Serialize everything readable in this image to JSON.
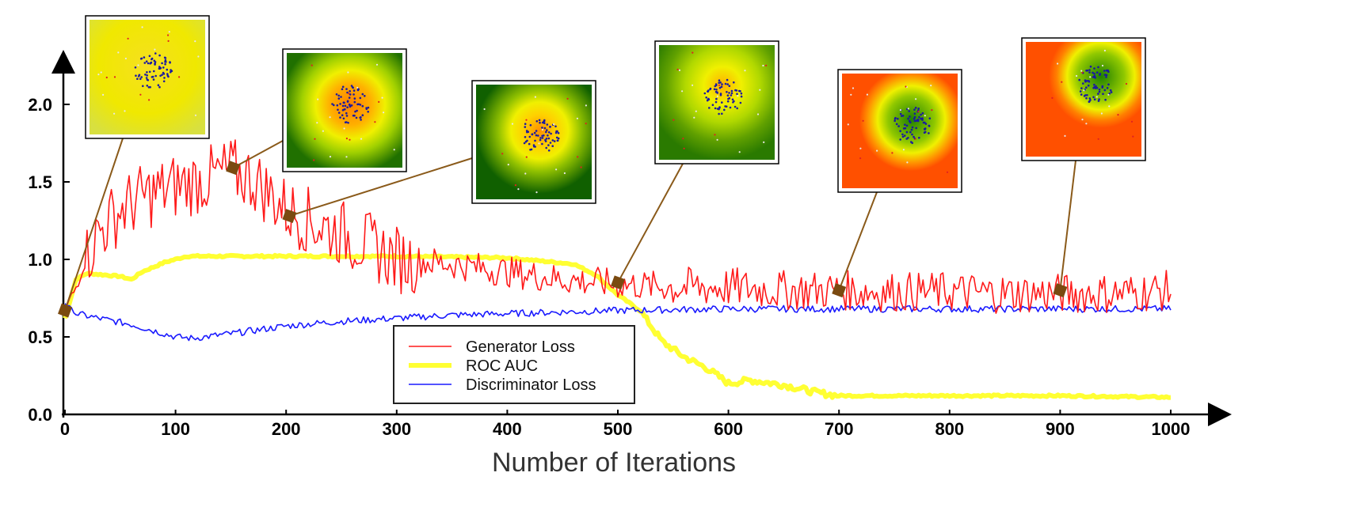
{
  "chart_data": {
    "type": "line",
    "title": "",
    "xlabel": "Number of Iterations",
    "ylabel": "",
    "xlim": [
      0,
      1000
    ],
    "ylim": [
      0,
      2.3
    ],
    "x_ticks": [
      "0",
      "100",
      "200",
      "300",
      "400",
      "500",
      "600",
      "700",
      "800",
      "900",
      "1000"
    ],
    "y_ticks": [
      "0.0",
      "0.5",
      "1.0",
      "1.5",
      "2.0"
    ],
    "grid": false,
    "legend_position": "bottom-center",
    "series": [
      {
        "name": "Generator Loss",
        "color": "#ff1a1a",
        "x": [
          0,
          10,
          20,
          30,
          50,
          70,
          100,
          130,
          150,
          170,
          200,
          230,
          250,
          280,
          300,
          350,
          400,
          450,
          500,
          550,
          600,
          650,
          700,
          750,
          800,
          850,
          900,
          950,
          1000
        ],
        "y": [
          0.65,
          0.8,
          1.0,
          1.15,
          1.3,
          1.38,
          1.45,
          1.5,
          1.55,
          1.5,
          1.3,
          1.2,
          1.15,
          1.05,
          0.98,
          0.95,
          0.9,
          0.85,
          0.82,
          0.8,
          0.8,
          0.78,
          0.78,
          0.77,
          0.77,
          0.76,
          0.76,
          0.76,
          0.78
        ]
      },
      {
        "name": "ROC AUC",
        "color": "#ffff33",
        "x": [
          0,
          10,
          20,
          50,
          60,
          70,
          90,
          110,
          150,
          200,
          300,
          400,
          430,
          460,
          480,
          500,
          520,
          530,
          540,
          560,
          580,
          600,
          620,
          650,
          680,
          700,
          800,
          900,
          1000
        ],
        "y": [
          0.6,
          0.85,
          0.89,
          0.87,
          0.85,
          0.9,
          0.96,
          1.0,
          1.0,
          1.0,
          1.0,
          0.99,
          0.97,
          0.95,
          0.88,
          0.75,
          0.65,
          0.55,
          0.45,
          0.35,
          0.28,
          0.18,
          0.2,
          0.17,
          0.12,
          0.1,
          0.1,
          0.1,
          0.09
        ]
      },
      {
        "name": "Discriminator Loss",
        "color": "#1a1aff",
        "x": [
          0,
          10,
          30,
          60,
          80,
          100,
          115,
          150,
          200,
          250,
          300,
          350,
          400,
          450,
          500,
          600,
          700,
          800,
          900,
          1000
        ],
        "y": [
          0.7,
          0.63,
          0.6,
          0.56,
          0.52,
          0.48,
          0.47,
          0.5,
          0.55,
          0.58,
          0.6,
          0.62,
          0.63,
          0.64,
          0.65,
          0.66,
          0.66,
          0.66,
          0.66,
          0.66
        ]
      }
    ],
    "markers": [
      {
        "x": 0,
        "y": 0.65
      },
      {
        "x": 152,
        "y": 1.57
      },
      {
        "x": 203,
        "y": 1.26
      },
      {
        "x": 500,
        "y": 0.83
      },
      {
        "x": 700,
        "y": 0.78
      },
      {
        "x": 900,
        "y": 0.78
      }
    ],
    "insets": [
      {
        "iteration": 0,
        "style": "yellow"
      },
      {
        "iteration": 150,
        "style": "green-orange"
      },
      {
        "iteration": 200,
        "style": "green-orange-small"
      },
      {
        "iteration": 500,
        "style": "green-yellow"
      },
      {
        "iteration": 700,
        "style": "orange-green"
      },
      {
        "iteration": 900,
        "style": "orange-green-top"
      }
    ]
  },
  "colors": {
    "marker": "#7a4a10",
    "connector": "#8a5a1a",
    "axis": "#000000"
  }
}
